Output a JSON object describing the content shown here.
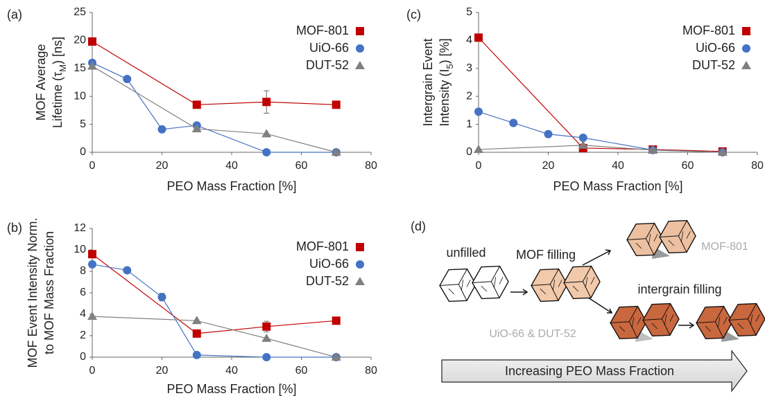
{
  "chart_data": [
    {
      "type": "line",
      "panel_label": "(a)",
      "ylabel": [
        [
          {
            "text": "MOF Average"
          }
        ],
        [
          {
            "text": "Lifetime (τ"
          },
          {
            "text": "M",
            "sub": true
          },
          {
            "text": ") [ns]"
          }
        ]
      ],
      "xlabel": "PEO Mass Fraction [%]",
      "xlim": [
        0,
        80
      ],
      "xticks": [
        0,
        20,
        40,
        60,
        80
      ],
      "ylim": [
        0,
        25
      ],
      "yticks": [
        0,
        5,
        10,
        15,
        20,
        25
      ],
      "legend": "upper right",
      "series": [
        {
          "name": "MOF-801",
          "color": "#c00000",
          "marker": "square",
          "x": [
            0,
            30,
            50,
            70
          ],
          "values": [
            19.8,
            8.5,
            9.0,
            8.5
          ],
          "errors": [
            null,
            null,
            2,
            null
          ]
        },
        {
          "name": "UiO-66",
          "color": "#4472c4",
          "marker": "circle",
          "x": [
            0,
            10,
            20,
            30,
            50,
            70
          ],
          "values": [
            16,
            13.1,
            4.1,
            4.8,
            0,
            0
          ]
        },
        {
          "name": "DUT-52",
          "color": "#808080",
          "marker": "triangle",
          "x": [
            0,
            30,
            50,
            70
          ],
          "values": [
            15.4,
            4.2,
            3.3,
            0
          ]
        }
      ]
    },
    {
      "type": "line",
      "panel_label": "(b)",
      "ylabel": [
        [
          {
            "text": "MOF Event Intensity Norm."
          }
        ],
        [
          {
            "text": "to MOF Mass Fraction"
          }
        ]
      ],
      "xlabel": "PEO Mass Fraction [%]",
      "xlim": [
        0,
        80
      ],
      "xticks": [
        0,
        20,
        40,
        60,
        80
      ],
      "ylim": [
        0,
        12
      ],
      "yticks": [
        0,
        2,
        4,
        6,
        8,
        10,
        12
      ],
      "legend": "upper right",
      "series": [
        {
          "name": "MOF-801",
          "color": "#c00000",
          "marker": "square",
          "x": [
            0,
            30,
            50,
            70
          ],
          "values": [
            9.6,
            2.2,
            2.85,
            3.4
          ],
          "errors": [
            null,
            null,
            0.5,
            null
          ]
        },
        {
          "name": "UiO-66",
          "color": "#4472c4",
          "marker": "circle",
          "x": [
            0,
            10,
            20,
            30,
            50,
            70
          ],
          "values": [
            8.65,
            8.1,
            5.6,
            0.2,
            0,
            0
          ],
          "errors": [
            null,
            null,
            0.35,
            null,
            null,
            null
          ]
        },
        {
          "name": "DUT-52",
          "color": "#808080",
          "marker": "triangle",
          "x": [
            0,
            30,
            50,
            70
          ],
          "values": [
            3.8,
            3.4,
            1.75,
            0
          ]
        }
      ]
    },
    {
      "type": "line",
      "panel_label": "(c)",
      "ylabel": [
        [
          {
            "text": "Intergrain Event"
          }
        ],
        [
          {
            "text": "Intensity (I"
          },
          {
            "text": "5",
            "sub": true
          },
          {
            "text": ") [%]"
          }
        ]
      ],
      "xlabel": "PEO Mass Fraction [%]",
      "xlim": [
        0,
        80
      ],
      "xticks": [
        0,
        20,
        40,
        60,
        80
      ],
      "ylim": [
        0,
        5
      ],
      "yticks": [
        0,
        1,
        2,
        3,
        4,
        5
      ],
      "legend": "upper right",
      "series": [
        {
          "name": "MOF-801",
          "color": "#c00000",
          "marker": "square",
          "x": [
            0,
            30,
            50,
            70
          ],
          "values": [
            4.1,
            0.15,
            0.1,
            0.03
          ]
        },
        {
          "name": "UiO-66",
          "color": "#4472c4",
          "marker": "circle",
          "x": [
            0,
            10,
            20,
            30,
            50,
            70
          ],
          "values": [
            1.45,
            1.05,
            0.65,
            0.52,
            0.08,
            0
          ]
        },
        {
          "name": "DUT-52",
          "color": "#808080",
          "marker": "triangle",
          "x": [
            0,
            30,
            50,
            70
          ],
          "values": [
            0.1,
            0.25,
            0.08,
            0
          ]
        }
      ]
    }
  ],
  "diagram": {
    "panel_label": "(d)",
    "unfilled": "unfilled",
    "mof_filling": "MOF filling",
    "mof_801": "MOF-801",
    "intergrain_filling": "intergrain filling",
    "uio_dut": "UiO-66 & DUT-52",
    "arrow_label": "Increasing PEO Mass Fraction"
  }
}
